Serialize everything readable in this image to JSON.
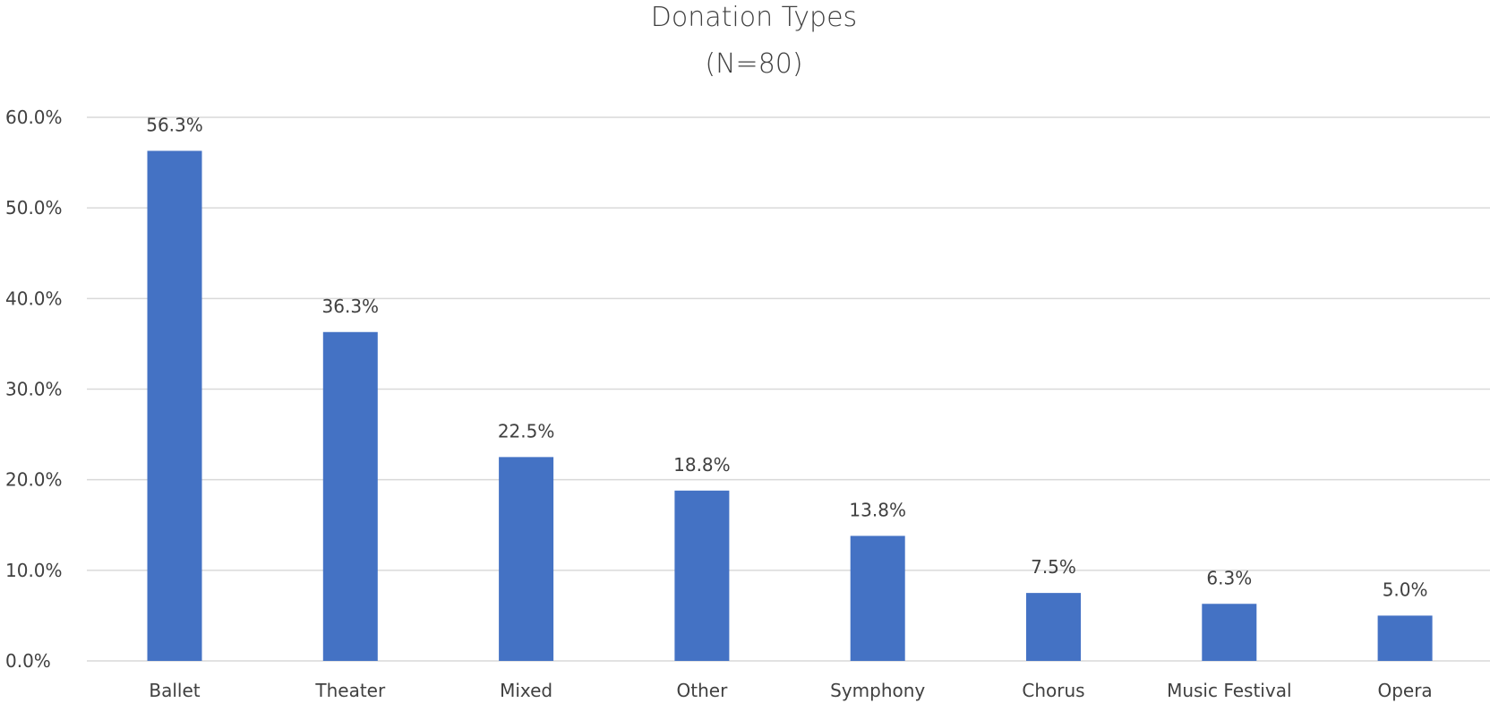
{
  "chart_data": {
    "type": "bar",
    "title": "Donation Types",
    "subtitle": "(N=80)",
    "categories": [
      "Ballet",
      "Theater",
      "Mixed",
      "Other",
      "Symphony",
      "Chorus",
      "Music Festival",
      "Opera"
    ],
    "values": [
      56.3,
      36.3,
      22.5,
      18.8,
      13.8,
      7.5,
      6.3,
      5.0
    ],
    "data_labels": [
      "56.3%",
      "36.3%",
      "22.5%",
      "18.8%",
      "13.8%",
      "7.5%",
      "6.3%",
      "5.0%"
    ],
    "ylim": [
      0,
      60
    ],
    "yticks": [
      0,
      10,
      20,
      30,
      40,
      50,
      60
    ],
    "ytick_labels": [
      "0.0%",
      "10.0%",
      "20.0%",
      "30.0%",
      "40.0%",
      "50.0%",
      "60.0%"
    ],
    "xlabel": "",
    "ylabel": "",
    "grid": true,
    "legend": "none",
    "bar_color": "#4472c4",
    "grid_color": "#d9d9d9",
    "text_color": "#404040"
  }
}
